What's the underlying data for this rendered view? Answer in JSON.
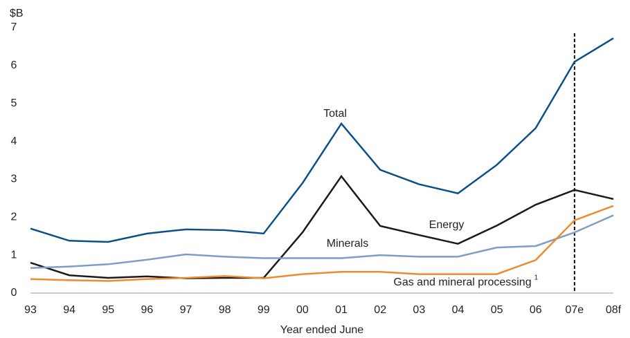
{
  "chart_data": {
    "type": "line",
    "y_label": "$B",
    "x_label": "Year ended June",
    "categories": [
      "93",
      "94",
      "95",
      "96",
      "97",
      "98",
      "99",
      "00",
      "01",
      "02",
      "03",
      "04",
      "05",
      "06",
      "07e",
      "08f"
    ],
    "series": [
      {
        "name": "Total",
        "color": "#0b4f88",
        "values": [
          1.7,
          1.38,
          1.35,
          1.57,
          1.68,
          1.66,
          1.57,
          2.9,
          4.47,
          3.25,
          2.87,
          2.63,
          3.38,
          4.35,
          6.1,
          6.72
        ]
      },
      {
        "name": "Energy",
        "color": "#1a1a1a",
        "values": [
          0.8,
          0.47,
          0.4,
          0.44,
          0.39,
          0.4,
          0.4,
          1.6,
          3.08,
          1.77,
          1.53,
          1.3,
          1.78,
          2.33,
          2.72,
          2.48
        ]
      },
      {
        "name": "Minerals",
        "color": "#7d9dc9",
        "values": [
          0.66,
          0.7,
          0.76,
          0.88,
          1.02,
          0.96,
          0.92,
          0.92,
          0.92,
          1.0,
          0.96,
          0.96,
          1.2,
          1.24,
          1.6,
          2.05
        ]
      },
      {
        "name": "Gas and mineral processing",
        "color": "#ef8a2f",
        "note_marker": "1",
        "values": [
          0.37,
          0.34,
          0.32,
          0.37,
          0.4,
          0.45,
          0.39,
          0.5,
          0.56,
          0.56,
          0.5,
          0.5,
          0.5,
          0.87,
          1.92,
          2.3
        ]
      }
    ],
    "divider_category": "07e",
    "ylim": [
      0,
      7
    ],
    "yticks": [
      0,
      1,
      2,
      3,
      4,
      5,
      6,
      7
    ]
  }
}
